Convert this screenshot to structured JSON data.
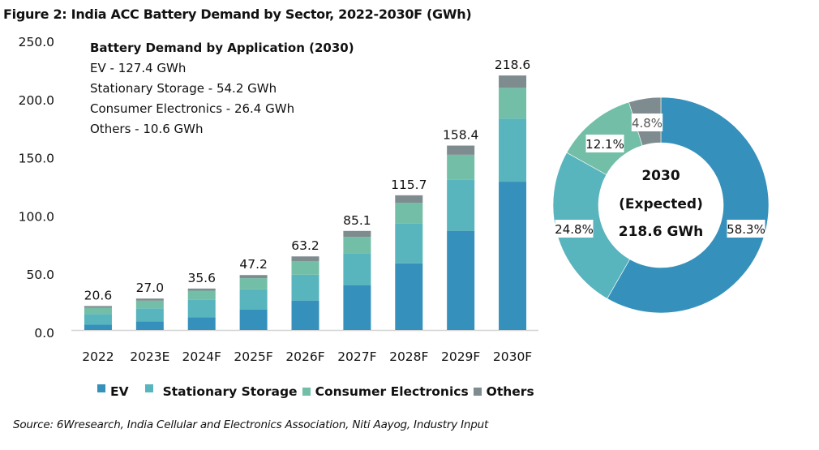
{
  "figure_title": "Figure 2: India ACC Battery Demand by Sector, 2022-2030F (GWh)",
  "annotation": {
    "heading": "Battery Demand by Application (2030)",
    "lines": [
      "EV - 127.4 GWh",
      "Stationary Storage - 54.2 GWh",
      "Consumer Electronics - 26.4 GWh",
      "Others - 10.6 GWh"
    ]
  },
  "source": "Source: 6Wresearch, India Cellular and Electronics Association, Niti Aayog, Industry Input",
  "colors": {
    "EV": "#3591bb",
    "Stationary Storage": "#58b4bd",
    "Consumer Electronics": "#72bea6",
    "Others": "#7e8c8f"
  },
  "chart_data": [
    {
      "type": "bar",
      "stacked": true,
      "title": "Figure 2: India ACC Battery Demand by Sector, 2022-2030F (GWh)",
      "xlabel": "",
      "ylabel": "",
      "categories": [
        "2022",
        "2023E",
        "2024F",
        "2025F",
        "2026F",
        "2027F",
        "2028F",
        "2029F",
        "2030F"
      ],
      "series": [
        {
          "name": "EV",
          "values": [
            4.5,
            7.5,
            11.0,
            17.4,
            25.3,
            38.3,
            57.3,
            85.2,
            127.4
          ]
        },
        {
          "name": "Stationary Storage",
          "values": [
            9.2,
            11.1,
            15.0,
            17.6,
            22.2,
            27.7,
            34.0,
            43.8,
            54.2
          ]
        },
        {
          "name": "Consumer Electronics",
          "values": [
            5.3,
            6.6,
            7.8,
            9.5,
            11.7,
            14.0,
            18.0,
            21.5,
            26.4
          ]
        },
        {
          "name": "Others",
          "values": [
            1.6,
            1.8,
            1.8,
            2.7,
            4.0,
            5.1,
            6.4,
            7.9,
            10.6
          ]
        }
      ],
      "totals": [
        "20.6",
        "27.0",
        "35.6",
        "47.2",
        "63.2",
        "85.1",
        "115.7",
        "158.4",
        "218.6"
      ],
      "ylim": [
        0,
        250
      ],
      "yticks": [
        "0.0",
        "50.0",
        "100.0",
        "150.0",
        "200.0",
        "250.0"
      ],
      "grid": false,
      "legend": {
        "position": "bottom",
        "entries": [
          "EV",
          "Stationary Storage",
          "Consumer Electronics",
          "Others"
        ]
      }
    },
    {
      "type": "pie",
      "donut": true,
      "title": "2030 (Expected)",
      "center_lines": [
        "2030",
        "(Expected)",
        "218.6 GWh"
      ],
      "slices": [
        {
          "name": "EV",
          "value": 58.3,
          "label": "58.3%"
        },
        {
          "name": "Stationary Storage",
          "value": 24.8,
          "label": "24.8%"
        },
        {
          "name": "Consumer Electronics",
          "value": 12.1,
          "label": "12.1%"
        },
        {
          "name": "Others",
          "value": 4.8,
          "label": "4.8%"
        }
      ]
    }
  ]
}
